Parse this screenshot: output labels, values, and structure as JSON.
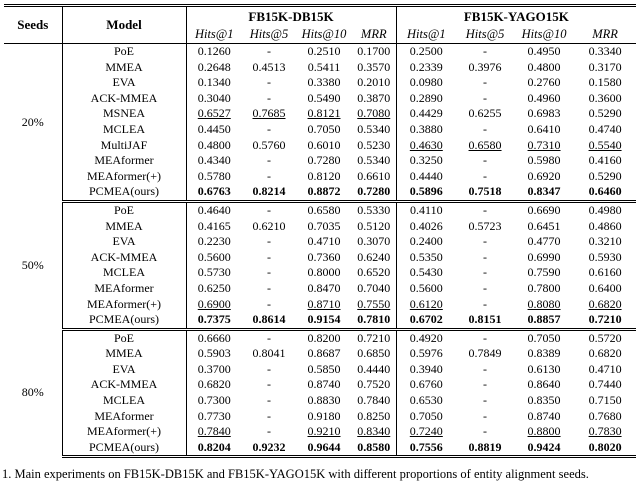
{
  "table": {
    "header": {
      "seeds": "Seeds",
      "model": "Model",
      "groups": [
        {
          "name": "FB15K-DB15K"
        },
        {
          "name": "FB15K-YAGO15K"
        }
      ],
      "metrics": [
        "Hits@1",
        "Hits@5",
        "Hits@10",
        "MRR"
      ]
    },
    "legend": {
      "best_style": "bold",
      "second_best_style": "underline"
    },
    "sections": [
      {
        "seeds": "20%",
        "rows": [
          {
            "model": "PoE",
            "db": [
              "0.1260",
              "-",
              "0.2510",
              "0.1700"
            ],
            "db_mark": "",
            "yago": [
              "0.2500",
              "-",
              "0.4950",
              "0.3340"
            ],
            "yago_mark": ""
          },
          {
            "model": "MMEA",
            "db": [
              "0.2648",
              "0.4513",
              "0.5411",
              "0.3570"
            ],
            "db_mark": "",
            "yago": [
              "0.2339",
              "0.3976",
              "0.4800",
              "0.3170"
            ],
            "yago_mark": ""
          },
          {
            "model": "EVA",
            "db": [
              "0.1340",
              "-",
              "0.3380",
              "0.2010"
            ],
            "db_mark": "",
            "yago": [
              "0.0980",
              "-",
              "0.2760",
              "0.1580"
            ],
            "yago_mark": ""
          },
          {
            "model": "ACK-MMEA",
            "db": [
              "0.3040",
              "-",
              "0.5490",
              "0.3870"
            ],
            "db_mark": "",
            "yago": [
              "0.2890",
              "-",
              "0.4960",
              "0.3600"
            ],
            "yago_mark": ""
          },
          {
            "model": "MSNEA",
            "db": [
              "0.6527",
              "0.7685",
              "0.8121",
              "0.7080"
            ],
            "db_mark": "u",
            "yago": [
              "0.4429",
              "0.6255",
              "0.6983",
              "0.5290"
            ],
            "yago_mark": ""
          },
          {
            "model": "MCLEA",
            "db": [
              "0.4450",
              "-",
              "0.7050",
              "0.5340"
            ],
            "db_mark": "",
            "yago": [
              "0.3880",
              "-",
              "0.6410",
              "0.4740"
            ],
            "yago_mark": ""
          },
          {
            "model": "MultiJAF",
            "db": [
              "0.4800",
              "0.5760",
              "0.6010",
              "0.5230"
            ],
            "db_mark": "",
            "yago": [
              "0.4630",
              "0.6580",
              "0.7310",
              "0.5540"
            ],
            "yago_mark": "u"
          },
          {
            "model": "MEAformer",
            "db": [
              "0.4340",
              "-",
              "0.7280",
              "0.5340"
            ],
            "db_mark": "",
            "yago": [
              "0.3250",
              "-",
              "0.5980",
              "0.4160"
            ],
            "yago_mark": ""
          },
          {
            "model": "MEAformer(+)",
            "db": [
              "0.5780",
              "-",
              "0.8120",
              "0.6610"
            ],
            "db_mark": "",
            "yago": [
              "0.4440",
              "-",
              "0.6920",
              "0.5290"
            ],
            "yago_mark": ""
          },
          {
            "model": "PCMEA(ours)",
            "db": [
              "0.6763",
              "0.8214",
              "0.8872",
              "0.7280"
            ],
            "db_mark": "b",
            "yago": [
              "0.5896",
              "0.7518",
              "0.8347",
              "0.6460"
            ],
            "yago_mark": "b"
          }
        ]
      },
      {
        "seeds": "50%",
        "rows": [
          {
            "model": "PoE",
            "db": [
              "0.4640",
              "-",
              "0.6580",
              "0.5330"
            ],
            "db_mark": "",
            "yago": [
              "0.4110",
              "-",
              "0.6690",
              "0.4980"
            ],
            "yago_mark": ""
          },
          {
            "model": "MMEA",
            "db": [
              "0.4165",
              "0.6210",
              "0.7035",
              "0.5120"
            ],
            "db_mark": "",
            "yago": [
              "0.4026",
              "0.5723",
              "0.6451",
              "0.4860"
            ],
            "yago_mark": ""
          },
          {
            "model": "EVA",
            "db": [
              "0.2230",
              "-",
              "0.4710",
              "0.3070"
            ],
            "db_mark": "",
            "yago": [
              "0.2400",
              "-",
              "0.4770",
              "0.3210"
            ],
            "yago_mark": ""
          },
          {
            "model": "ACK-MMEA",
            "db": [
              "0.5600",
              "-",
              "0.7360",
              "0.6240"
            ],
            "db_mark": "",
            "yago": [
              "0.5350",
              "-",
              "0.6990",
              "0.5930"
            ],
            "yago_mark": ""
          },
          {
            "model": "MCLEA",
            "db": [
              "0.5730",
              "-",
              "0.8000",
              "0.6520"
            ],
            "db_mark": "",
            "yago": [
              "0.5430",
              "-",
              "0.7590",
              "0.6160"
            ],
            "yago_mark": ""
          },
          {
            "model": "MEAformer",
            "db": [
              "0.6250",
              "-",
              "0.8470",
              "0.7040"
            ],
            "db_mark": "",
            "yago": [
              "0.5600",
              "-",
              "0.7800",
              "0.6400"
            ],
            "yago_mark": ""
          },
          {
            "model": "MEAformer(+)",
            "db": [
              "0.6900",
              "-",
              "0.8710",
              "0.7550"
            ],
            "db_mark": "u",
            "yago": [
              "0.6120",
              "-",
              "0.8080",
              "0.6820"
            ],
            "yago_mark": "u"
          },
          {
            "model": "PCMEA(ours)",
            "db": [
              "0.7375",
              "0.8614",
              "0.9154",
              "0.7810"
            ],
            "db_mark": "b",
            "yago": [
              "0.6702",
              "0.8151",
              "0.8857",
              "0.7210"
            ],
            "yago_mark": "b"
          }
        ]
      },
      {
        "seeds": "80%",
        "rows": [
          {
            "model": "PoE",
            "db": [
              "0.6660",
              "-",
              "0.8200",
              "0.7210"
            ],
            "db_mark": "",
            "yago": [
              "0.4920",
              "-",
              "0.7050",
              "0.5720"
            ],
            "yago_mark": ""
          },
          {
            "model": "MMEA",
            "db": [
              "0.5903",
              "0.8041",
              "0.8687",
              "0.6850"
            ],
            "db_mark": "",
            "yago": [
              "0.5976",
              "0.7849",
              "0.8389",
              "0.6820"
            ],
            "yago_mark": ""
          },
          {
            "model": "EVA",
            "db": [
              "0.3700",
              "-",
              "0.5850",
              "0.4440"
            ],
            "db_mark": "",
            "yago": [
              "0.3940",
              "-",
              "0.6130",
              "0.4710"
            ],
            "yago_mark": ""
          },
          {
            "model": "ACK-MMEA",
            "db": [
              "0.6820",
              "-",
              "0.8740",
              "0.7520"
            ],
            "db_mark": "",
            "yago": [
              "0.6760",
              "-",
              "0.8640",
              "0.7440"
            ],
            "yago_mark": ""
          },
          {
            "model": "MCLEA",
            "db": [
              "0.7300",
              "-",
              "0.8830",
              "0.7840"
            ],
            "db_mark": "",
            "yago": [
              "0.6530",
              "-",
              "0.8350",
              "0.7150"
            ],
            "yago_mark": ""
          },
          {
            "model": "MEAformer",
            "db": [
              "0.7730",
              "-",
              "0.9180",
              "0.8250"
            ],
            "db_mark": "",
            "yago": [
              "0.7050",
              "-",
              "0.8740",
              "0.7680"
            ],
            "yago_mark": ""
          },
          {
            "model": "MEAformer(+)",
            "db": [
              "0.7840",
              "-",
              "0.9210",
              "0.8340"
            ],
            "db_mark": "u",
            "yago": [
              "0.7240",
              "-",
              "0.8800",
              "0.7830"
            ],
            "yago_mark": "u"
          },
          {
            "model": "PCMEA(ours)",
            "db": [
              "0.8204",
              "0.9232",
              "0.9644",
              "0.8580"
            ],
            "db_mark": "b",
            "yago": [
              "0.7556",
              "0.8819",
              "0.9424",
              "0.8020"
            ],
            "yago_mark": "b"
          }
        ]
      }
    ]
  },
  "caption": "1. Main experiments on FB15K-DB15K and FB15K-YAGO15K with different proportions of entity alignment seeds."
}
